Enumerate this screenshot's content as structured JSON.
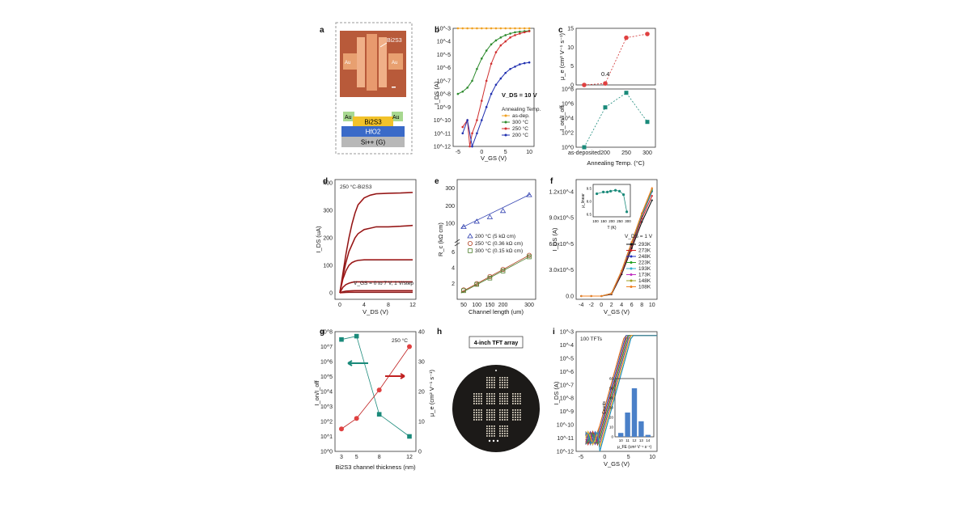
{
  "figure": {
    "panel_labels": [
      "a",
      "b",
      "c",
      "d",
      "e",
      "f",
      "g",
      "h",
      "i"
    ],
    "a": {
      "labels": {
        "bi2s3_top": "Bi2S3",
        "au_left": "Au",
        "au_right": "Au",
        "au_stack_left": "Au",
        "au_stack_right": "Au",
        "bi2s3_stack": "Bi2S3",
        "hfo2": "HfO2",
        "si": "Si++ (G)"
      }
    },
    "b": {
      "ylabel": "I_DS (A)",
      "xlabel": "V_GS (V)",
      "annotation": "V_DS = 10 V",
      "legend_title": "Annealing Temp.",
      "xticks": [
        "-5",
        "0",
        "5",
        "10"
      ],
      "yticks": [
        "10^-3",
        "10^-4",
        "10^-5",
        "10^-6",
        "10^-7",
        "10^-8",
        "10^-9",
        "10^-10",
        "10^-11",
        "10^-12"
      ]
    },
    "c": {
      "top_ylabel": "μ_e (cm² V⁻¹ s⁻¹)",
      "bottom_ylabel": "I_on/I_off",
      "xlabel": "Annealing Temp. (°C)",
      "annotation": "0.4",
      "xticks": [
        "as-deposited",
        "200",
        "250",
        "300"
      ],
      "top_yticks": [
        "0",
        "5",
        "10",
        "15"
      ],
      "bottom_yticks": [
        "10^0",
        "10^2",
        "10^4",
        "10^6",
        "10^8"
      ]
    },
    "d": {
      "title": "250 °C-Bi2S3",
      "ylabel": "I_DS (uA)",
      "xlabel": "V_DS (V)",
      "annotation": "V_GS = 0 to 7 V, 1 V/step",
      "xticks": [
        "0",
        "4",
        "8",
        "12"
      ],
      "yticks": [
        "0",
        "100",
        "200",
        "300",
        "400"
      ]
    },
    "e": {
      "ylabel": "R_c (kΩ cm)",
      "xlabel": "Channel length (um)",
      "xticks": [
        "50",
        "100",
        "150",
        "200",
        "300"
      ],
      "yticks_top": [
        "100",
        "200",
        "300"
      ],
      "yticks_bottom": [
        "2",
        "4",
        "6"
      ]
    },
    "f": {
      "ylabel": "I_DS (A)",
      "xlabel": "V_GS (V)",
      "annotation": "V_DS = 1 V",
      "xticks": [
        "-4",
        "-2",
        "0",
        "2",
        "4",
        "6",
        "8",
        "10"
      ],
      "yticks": [
        "0.0",
        "3.0x10^-5",
        "6.0x10^-5",
        "9.0x10^-5",
        "1.2x10^-4"
      ],
      "inset_ylabel": "μ_linear",
      "inset_xlabel": "T (K)",
      "inset_xticks": [
        "100",
        "150",
        "200",
        "250",
        "300"
      ],
      "inset_yticks": [
        "6.5",
        "8.0",
        "9.5"
      ]
    },
    "g": {
      "annotation": "250 °C",
      "left_ylabel": "I_on/I_off",
      "right_ylabel": "μ_e (cm² V⁻¹ s⁻¹)",
      "xlabel": "Bi2S3 channel thickness (nm)",
      "xticks": [
        "3",
        "5",
        "8",
        "12"
      ],
      "left_yticks": [
        "10^0",
        "10^1",
        "10^2",
        "10^3",
        "10^4",
        "10^5",
        "10^6",
        "10^7",
        "10^8"
      ],
      "right_yticks": [
        "0",
        "10",
        "20",
        "30",
        "40"
      ]
    },
    "h": {
      "title": "4-inch TFT array"
    },
    "i": {
      "annotation": "100 TFTs",
      "ylabel": "I_DS (A)",
      "xlabel": "V_GS (V)",
      "xticks": [
        "-5",
        "0",
        "5",
        "10"
      ],
      "yticks": [
        "10^-3",
        "10^-4",
        "10^-5",
        "10^-6",
        "10^-7",
        "10^-8",
        "10^-9",
        "10^-10",
        "10^-11",
        "10^-12"
      ],
      "inset_ylabel": "Counts",
      "inset_xlabel": "μ_FE (cm² V⁻¹ s⁻¹)",
      "inset_xticks": [
        "10",
        "11",
        "12",
        "13",
        "14"
      ],
      "inset_yticks": [
        "0",
        "10",
        "20",
        "30",
        "40",
        "50",
        "60"
      ]
    }
  },
  "chart_data": [
    {
      "panel": "b",
      "type": "line",
      "ylog": true,
      "ylim": [
        1e-12,
        0.001
      ],
      "xlim": [
        -6,
        11
      ],
      "series": [
        {
          "name": "as-dep.",
          "color": "#f0a020",
          "x": [
            -5,
            -4,
            -3,
            -2,
            -1,
            0,
            1,
            2,
            3,
            4,
            5,
            6,
            7,
            8,
            9,
            10
          ],
          "y": [
            0.001,
            0.001,
            0.001,
            0.001,
            0.001,
            0.001,
            0.001,
            0.001,
            0.001,
            0.001,
            0.001,
            0.001,
            0.001,
            0.001,
            0.001,
            0.001
          ]
        },
        {
          "name": "300 °C",
          "color": "#2e8b2e",
          "x": [
            -5,
            -4,
            -3,
            -2,
            -1,
            0,
            1,
            2,
            3,
            4,
            5,
            6,
            7,
            8,
            9,
            10
          ],
          "y": [
            1e-08,
            1.5e-08,
            3e-08,
            1e-07,
            8e-07,
            5e-06,
            2e-05,
            6e-05,
            0.00012,
            0.0002,
            0.0003,
            0.0004,
            0.0005,
            0.00055,
            0.0006,
            0.00065
          ]
        },
        {
          "name": "250 °C",
          "color": "#d03030",
          "x": [
            -4,
            -3,
            -2.5,
            -2,
            -1,
            0,
            1,
            2,
            3,
            4,
            5,
            6,
            7,
            8,
            9,
            10
          ],
          "y": [
            3e-11,
            1e-10,
            1e-12,
            1e-11,
            1e-10,
            3e-09,
            1e-07,
            2e-06,
            1.5e-05,
            5e-05,
            0.0001,
            0.0002,
            0.0003,
            0.0004,
            0.0005,
            0.0006
          ]
        },
        {
          "name": "200 °C",
          "color": "#2030b0",
          "x": [
            -4,
            -3,
            -2,
            -1,
            0,
            1,
            2,
            3,
            4,
            5,
            6,
            7,
            8,
            9,
            10
          ],
          "y": [
            1e-11,
            1e-10,
            1e-12,
            1e-11,
            1e-10,
            1e-09,
            1e-08,
            5e-08,
            1.5e-07,
            4e-07,
            8e-07,
            1.2e-06,
            1.8e-06,
            2.2e-06,
            2.5e-06
          ]
        }
      ]
    },
    {
      "panel": "c-top",
      "type": "scatter",
      "categories": [
        "as-deposited",
        "200",
        "250",
        "300"
      ],
      "values": [
        0,
        0.4,
        12.5,
        13.5
      ],
      "ylim": [
        0,
        15
      ]
    },
    {
      "panel": "c-bottom",
      "type": "scatter",
      "ylog": true,
      "categories": [
        "as-deposited",
        "200",
        "250",
        "300"
      ],
      "values": [
        1,
        300000.0,
        30000000.0,
        3000.0
      ],
      "ylim": [
        1,
        100000000.0
      ]
    },
    {
      "panel": "d",
      "type": "line",
      "xlim": [
        0,
        12
      ],
      "ylim": [
        0,
        400
      ],
      "x": [
        0,
        0.5,
        1,
        1.5,
        2,
        2.5,
        3,
        4,
        5,
        6,
        8,
        10,
        12
      ],
      "series": [
        {
          "values": [
            0,
            1,
            1.5,
            2,
            2,
            2,
            2,
            2,
            2,
            2,
            2,
            2,
            2
          ]
        },
        {
          "values": [
            0,
            4,
            6,
            7,
            7.5,
            8,
            8,
            8,
            8,
            8,
            8,
            8,
            8
          ]
        },
        {
          "values": [
            0,
            20,
            30,
            35,
            38,
            40,
            40,
            40,
            40,
            40,
            40,
            40,
            40
          ]
        },
        {
          "values": [
            0,
            50,
            80,
            100,
            110,
            115,
            118,
            120,
            120,
            120,
            120,
            120,
            120
          ]
        },
        {
          "values": [
            0,
            60,
            110,
            150,
            175,
            200,
            215,
            230,
            235,
            240,
            240,
            242,
            245
          ]
        },
        {
          "values": [
            0,
            70,
            140,
            200,
            250,
            290,
            320,
            345,
            355,
            360,
            362,
            363,
            365
          ]
        }
      ]
    },
    {
      "panel": "e",
      "type": "scatter",
      "x": [
        50,
        100,
        150,
        200,
        300
      ],
      "series": [
        {
          "name": "200 °C (5 kΩ cm)",
          "values": [
            80,
            110,
            135,
            170,
            260
          ]
        },
        {
          "name": "250 °C (0.36 kΩ cm)",
          "values": [
            1.2,
            2.0,
            2.9,
            3.8,
            5.6
          ]
        },
        {
          "name": "300 °C (0.15 kΩ cm)",
          "values": [
            1.1,
            1.9,
            2.7,
            3.6,
            5.4
          ]
        }
      ]
    },
    {
      "panel": "f",
      "type": "line",
      "xlim": [
        -5,
        11
      ],
      "ylim": [
        0,
        0.00013
      ],
      "x": [
        -4,
        -2,
        0,
        2,
        4,
        6,
        8,
        10
      ],
      "series": [
        {
          "name": "293K",
          "color": "#111111",
          "values": [
            0,
            0,
            0,
            2e-06,
            2.5e-05,
            5.5e-05,
            8.5e-05,
            0.00011
          ]
        },
        {
          "name": "273K",
          "color": "#d02020",
          "values": [
            0,
            0,
            0,
            2.5e-06,
            2.7e-05,
            5.8e-05,
            8.9e-05,
            0.000115
          ]
        },
        {
          "name": "248K",
          "color": "#2030c0",
          "values": [
            0,
            0,
            0,
            3e-06,
            2.8e-05,
            6e-05,
            9.2e-05,
            0.00012
          ]
        },
        {
          "name": "223K",
          "color": "#20a020",
          "values": [
            0,
            0,
            0,
            3e-06,
            2.9e-05,
            6.1e-05,
            9.3e-05,
            0.000121
          ]
        },
        {
          "name": "193K",
          "color": "#30b0d0",
          "values": [
            0,
            0,
            0,
            3e-06,
            2.9e-05,
            6.2e-05,
            9.4e-05,
            0.000122
          ]
        },
        {
          "name": "173K",
          "color": "#c030c0",
          "values": [
            0,
            0,
            0,
            3e-06,
            2.9e-05,
            6.2e-05,
            9.5e-05,
            0.000123
          ]
        },
        {
          "name": "148K",
          "color": "#a0a020",
          "values": [
            0,
            0,
            0,
            3e-06,
            2.9e-05,
            6.2e-05,
            9.5e-05,
            0.000123
          ]
        },
        {
          "name": "108K",
          "color": "#f08020",
          "values": [
            0,
            0,
            0,
            3e-06,
            2.9e-05,
            6.2e-05,
            9.5e-05,
            0.000124
          ]
        }
      ],
      "inset": {
        "x": [
          108,
          148,
          173,
          193,
          223,
          248,
          273,
          293
        ],
        "values": [
          8.9,
          9.1,
          9.1,
          9.2,
          9.3,
          9.2,
          8.8,
          6.8
        ]
      }
    },
    {
      "panel": "g",
      "type": "scatter",
      "categories": [
        "3",
        "5",
        "8",
        "12"
      ],
      "series": [
        {
          "name": "I_on/I_off",
          "values": [
            30000000.0,
            50000000.0,
            300.0,
            10.0
          ],
          "ylog": true
        },
        {
          "name": "μ_e",
          "values": [
            7.5,
            11,
            20.5,
            35
          ],
          "ylim": [
            0,
            40
          ]
        }
      ]
    },
    {
      "panel": "i-inset",
      "type": "bar",
      "categories": [
        "10",
        "11",
        "12",
        "13",
        "14"
      ],
      "values": [
        4,
        25,
        50,
        16,
        2
      ],
      "ylim": [
        0,
        60
      ]
    }
  ]
}
